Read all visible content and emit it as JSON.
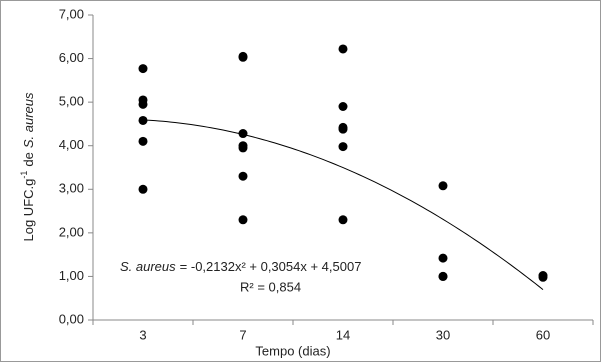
{
  "chart_data": {
    "type": "scatter",
    "x_label": "Tempo (dias)",
    "y_label_parts": [
      "Log UFC.g",
      "-1",
      "de",
      "S. aureus"
    ],
    "categories": [
      "3",
      "7",
      "14",
      "30",
      "60"
    ],
    "values": [
      [
        5.77,
        5.05,
        4.95,
        4.58,
        4.1,
        3.0
      ],
      [
        6.05,
        6.03,
        4.28,
        4.0,
        3.95,
        3.3,
        2.3
      ],
      [
        6.22,
        4.9,
        4.42,
        4.38,
        3.98,
        2.3
      ],
      [
        3.08,
        1.42,
        1.0,
        1.0
      ],
      [
        1.02,
        0.98
      ]
    ],
    "color": "#000000",
    "ylim": [
      0,
      7
    ],
    "yticks": [
      {
        "value": 0,
        "label": "0,00"
      },
      {
        "value": 1,
        "label": "1,00"
      },
      {
        "value": 2,
        "label": "2,00"
      },
      {
        "value": 3,
        "label": "3,00"
      },
      {
        "value": 4,
        "label": "4,00"
      },
      {
        "value": 5,
        "label": "5,00"
      },
      {
        "value": 6,
        "label": "6,00"
      },
      {
        "value": 7,
        "label": "7,00"
      }
    ],
    "grid": false,
    "trendline": {
      "coefficients": [
        -0.2132,
        0.3054,
        4.5007
      ],
      "subject": "S. aureus",
      "equation": "= -0,2132x² + 0,3054x + 4,5007",
      "r2_label": "R² = 0,854"
    }
  }
}
